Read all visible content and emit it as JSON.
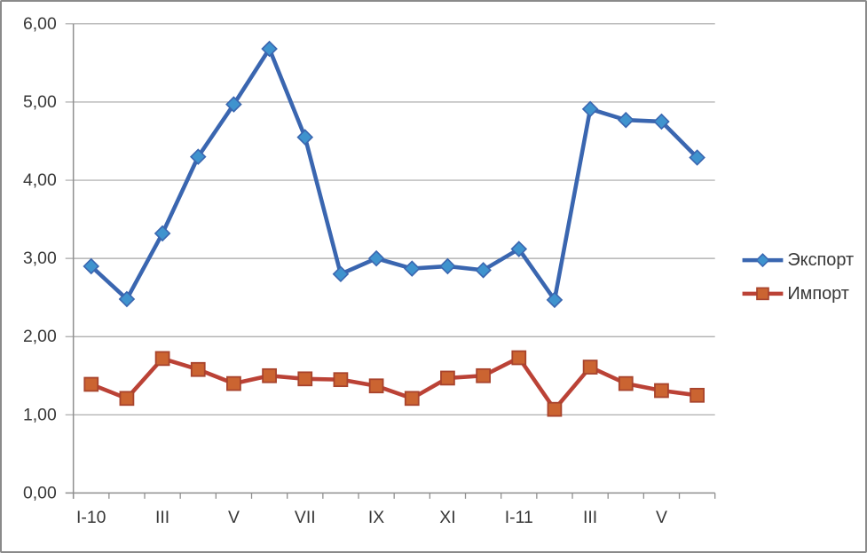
{
  "frame": {
    "background": "#ffffff",
    "border_color": "#8a8a8a"
  },
  "chart_data": {
    "type": "line",
    "title": "",
    "n_points": 18,
    "x_axis": {
      "tick_label_positions": [
        0,
        2,
        4,
        6,
        8,
        10,
        12,
        14,
        16
      ],
      "tick_labels": [
        "I-10",
        "III",
        "V",
        "VII",
        "IX",
        "XI",
        "I-11",
        "III",
        "V"
      ]
    },
    "y_axis": {
      "min": 0,
      "max": 6,
      "step": 1,
      "tick_labels": [
        "0,00",
        "1,00",
        "2,00",
        "3,00",
        "4,00",
        "5,00",
        "6,00"
      ]
    },
    "grid": true,
    "legend_position": "right",
    "series": [
      {
        "name": "Экспорт",
        "marker": "diamond",
        "line_color": "#3a66b0",
        "marker_fill": "#3f93ce",
        "marker_stroke": "#3a66b0",
        "values": [
          2.9,
          2.48,
          3.32,
          4.3,
          4.97,
          5.68,
          4.55,
          2.8,
          3.0,
          2.87,
          2.9,
          2.85,
          3.12,
          2.47,
          4.91,
          4.77,
          4.75,
          4.29
        ]
      },
      {
        "name": "Импорт",
        "marker": "square",
        "line_color": "#bb4236",
        "marker_fill": "#cb6431",
        "marker_stroke": "#a8432c",
        "values": [
          1.39,
          1.21,
          1.72,
          1.58,
          1.4,
          1.5,
          1.46,
          1.45,
          1.37,
          1.21,
          1.47,
          1.5,
          1.73,
          1.07,
          1.61,
          1.4,
          1.31,
          1.25
        ]
      }
    ],
    "colors": {
      "gridline": "#a6a6a6",
      "axis": "#8f8f8f",
      "text": "#383838"
    }
  }
}
